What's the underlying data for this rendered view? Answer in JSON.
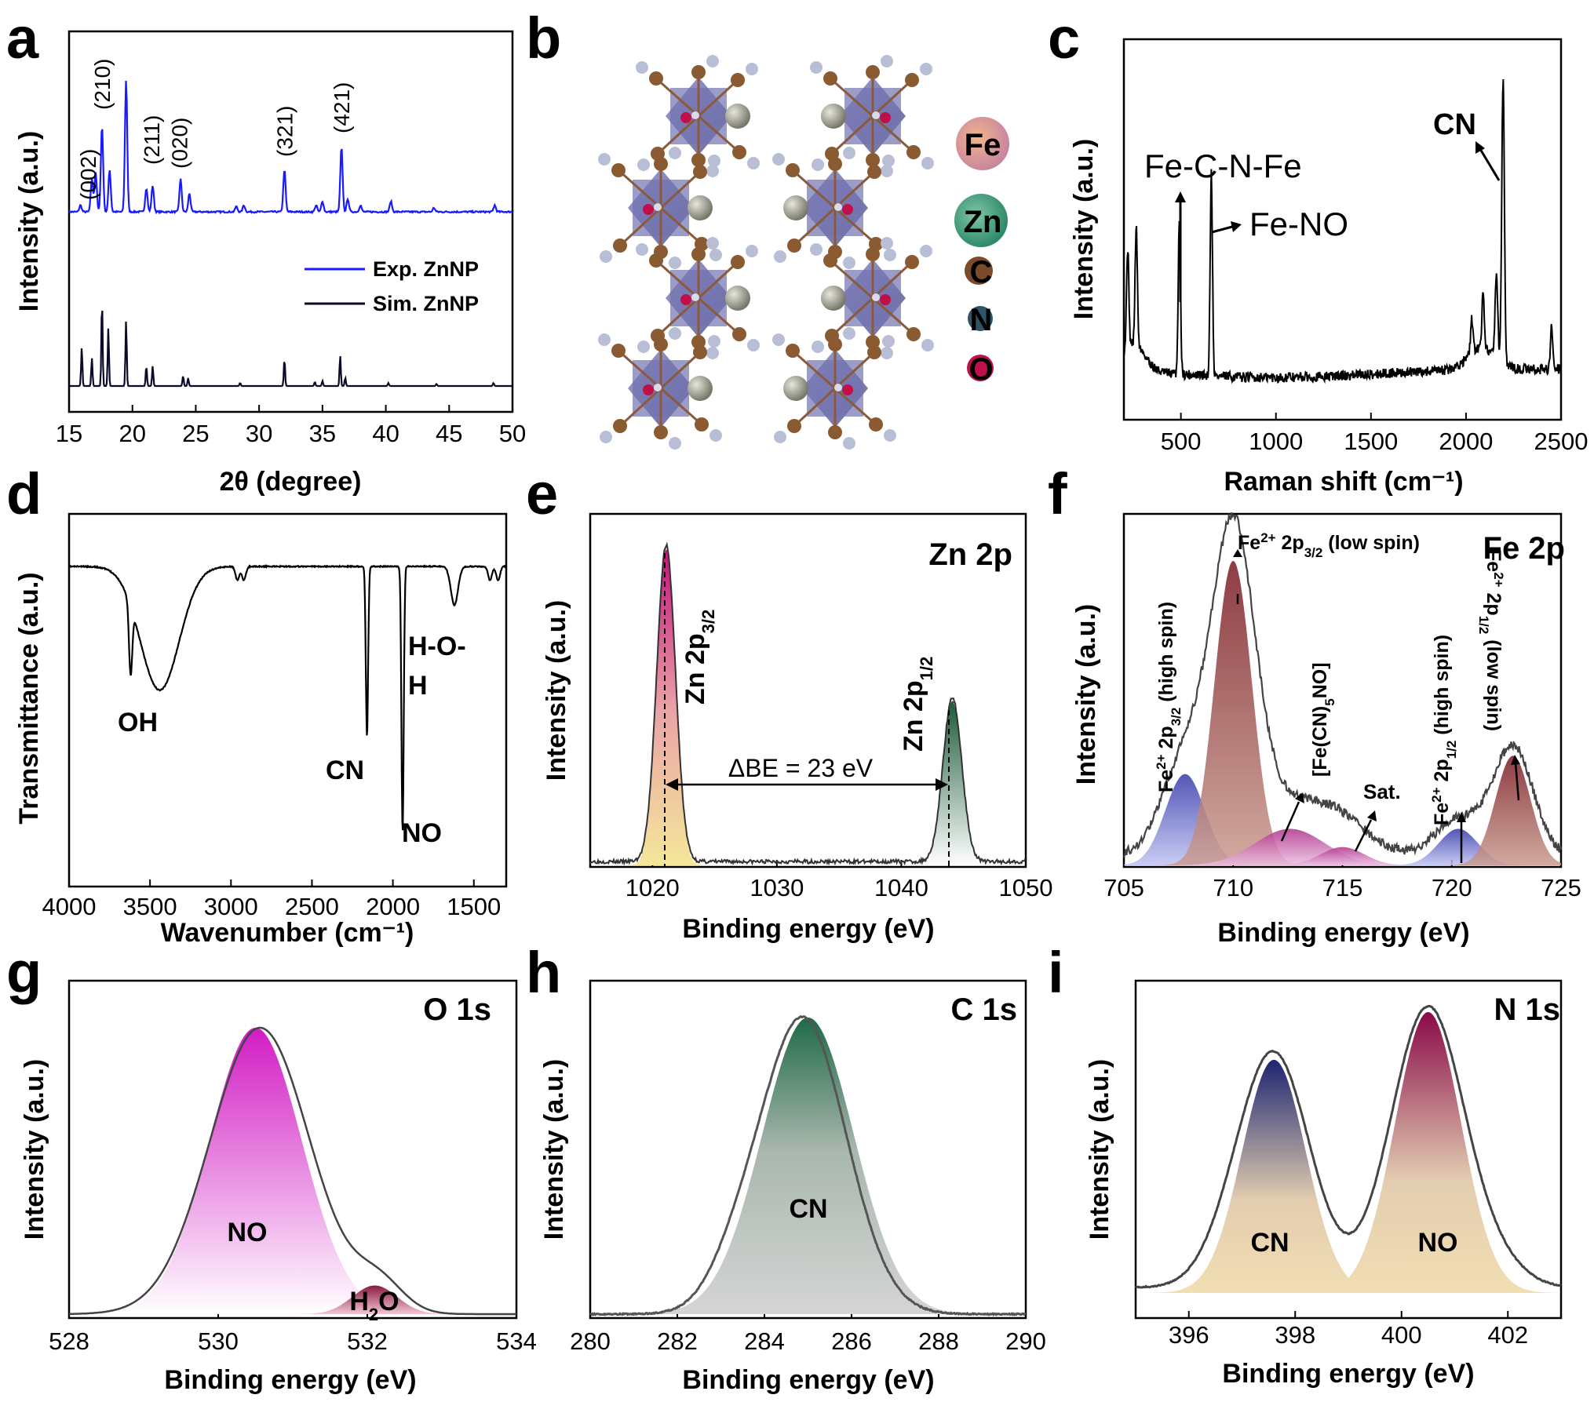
{
  "figure": {
    "panel_letters": [
      "a",
      "b",
      "c",
      "d",
      "e",
      "f",
      "g",
      "h",
      "i"
    ]
  },
  "chart_data": [
    {
      "panel": "a",
      "type": "line",
      "xlabel": "2θ (degree)",
      "ylabel": "Intensity (a.u.)",
      "xlim": [
        15,
        50
      ],
      "xticks": [
        15,
        20,
        25,
        30,
        35,
        40,
        45,
        50
      ],
      "legend": [
        "Exp. ZnNP",
        "Sim. ZnNP"
      ],
      "legend_position": "middle-right",
      "colors": [
        "#1a1aff",
        "#0a0a2a"
      ],
      "peak_labels": [
        {
          "x": 16.5,
          "label": "(002)"
        },
        {
          "x": 17.6,
          "label": "(210)"
        },
        {
          "x": 21.5,
          "label": "(211)"
        },
        {
          "x": 23.7,
          "label": "(020)"
        },
        {
          "x": 32.0,
          "label": "(321)"
        },
        {
          "x": 36.5,
          "label": "(421)"
        }
      ],
      "series": [
        {
          "name": "Exp. ZnNP",
          "peaks": [
            [
              15.9,
              0.05
            ],
            [
              16.8,
              0.25
            ],
            [
              17.1,
              0.3
            ],
            [
              17.6,
              0.65
            ],
            [
              18.2,
              0.32
            ],
            [
              19.5,
              1.0
            ],
            [
              21.1,
              0.18
            ],
            [
              21.6,
              0.2
            ],
            [
              23.8,
              0.25
            ],
            [
              24.5,
              0.14
            ],
            [
              28.2,
              0.04
            ],
            [
              28.8,
              0.05
            ],
            [
              32.0,
              0.32
            ],
            [
              34.5,
              0.05
            ],
            [
              35.0,
              0.08
            ],
            [
              36.5,
              0.49
            ],
            [
              37.0,
              0.1
            ],
            [
              38.0,
              0.05
            ],
            [
              40.4,
              0.08
            ],
            [
              43.8,
              0.03
            ],
            [
              48.6,
              0.05
            ]
          ]
        },
        {
          "name": "Sim. ZnNP",
          "peaks": [
            [
              16.0,
              0.38
            ],
            [
              16.8,
              0.28
            ],
            [
              17.6,
              0.85
            ],
            [
              18.1,
              0.58
            ],
            [
              19.5,
              0.65
            ],
            [
              21.1,
              0.2
            ],
            [
              21.6,
              0.2
            ],
            [
              24.0,
              0.1
            ],
            [
              24.4,
              0.08
            ],
            [
              28.5,
              0.03
            ],
            [
              32.0,
              0.27
            ],
            [
              34.4,
              0.04
            ],
            [
              35.0,
              0.05
            ],
            [
              36.4,
              0.3
            ],
            [
              36.8,
              0.08
            ],
            [
              40.2,
              0.03
            ],
            [
              44.0,
              0.02
            ],
            [
              48.5,
              0.03
            ]
          ]
        }
      ]
    },
    {
      "panel": "b",
      "type": "structure",
      "legend_atoms": [
        "Fe",
        "Zn",
        "C",
        "N",
        "O"
      ],
      "colors": [
        "#d08a6a",
        "#2f8a6a",
        "#7a4a2a",
        "#2e5566",
        "#c0104a"
      ]
    },
    {
      "panel": "c",
      "type": "line",
      "xlabel": "Raman shift (cm⁻¹)",
      "ylabel": "Intensity (a.u.)",
      "xlim": [
        200,
        2500
      ],
      "xticks": [
        500,
        1000,
        1500,
        2000,
        2500
      ],
      "annotations": [
        "Fe-C-N-Fe",
        "Fe-NO",
        "CN"
      ],
      "series": [
        {
          "name": "",
          "peaks": [
            [
              220,
              0.35
            ],
            [
              265,
              0.42
            ],
            [
              492,
              0.55
            ],
            [
              660,
              0.72
            ],
            [
              2030,
              0.12
            ],
            [
              2090,
              0.2
            ],
            [
              2160,
              0.3
            ],
            [
              2195,
              1.0
            ],
            [
              2450,
              0.15
            ]
          ]
        }
      ]
    },
    {
      "panel": "d",
      "type": "line",
      "xlabel": "Wavenumber (cm⁻¹)",
      "ylabel": "Transmittance (a.u.)",
      "xlim": [
        4000,
        1300
      ],
      "xticks": [
        4000,
        3500,
        3000,
        2500,
        2000,
        1500
      ],
      "annotations": [
        "OH",
        "CN",
        "NO",
        "H-O-H"
      ],
      "series": [
        {
          "name": "",
          "dips": [
            [
              3620,
              0.25
            ],
            [
              3440,
              0.45
            ],
            [
              2960,
              0.05
            ],
            [
              2920,
              0.05
            ],
            [
              2160,
              0.62
            ],
            [
              1940,
              0.97
            ],
            [
              1620,
              0.14
            ],
            [
              1400,
              0.05
            ],
            [
              1350,
              0.05
            ]
          ]
        }
      ]
    },
    {
      "panel": "e",
      "type": "area",
      "title": "Zn 2p",
      "xlabel": "Binding energy (eV)",
      "ylabel": "Intensity (a.u.)",
      "xlim": [
        1015,
        1050
      ],
      "xticks": [
        1020,
        1030,
        1040,
        1050
      ],
      "series": [
        {
          "name": "Zn 2p3/2",
          "center": 1021.1,
          "height": 1.0,
          "width": 0.75
        },
        {
          "name": "Zn 2p1/2",
          "center": 1044.1,
          "height": 0.52,
          "width": 0.75
        }
      ],
      "annotation": "ΔBE = 23 eV"
    },
    {
      "panel": "f",
      "type": "area",
      "title": "Fe 2p",
      "xlabel": "Binding energy (eV)",
      "ylabel": "Intensity (a.u.)",
      "xlim": [
        705,
        725
      ],
      "xticks": [
        705,
        710,
        715,
        720,
        725
      ],
      "series": [
        {
          "name": "Fe2+ 2p3/2 (high spin)",
          "center": 707.8,
          "height": 0.3,
          "width": 0.9
        },
        {
          "name": "Fe2+ 2p3/2 (low spin)",
          "center": 710.0,
          "height": 1.0,
          "width": 0.85
        },
        {
          "name": "[Fe(CN)5NO]",
          "center": 712.6,
          "height": 0.12,
          "width": 1.6
        },
        {
          "name": "Sat.",
          "center": 715.0,
          "height": 0.06,
          "width": 1.0
        },
        {
          "name": "Fe2+ 2p1/2 (high spin)",
          "center": 720.3,
          "height": 0.12,
          "width": 0.9
        },
        {
          "name": "Fe2+ 2p1/2 (low spin)",
          "center": 722.8,
          "height": 0.36,
          "width": 0.8
        }
      ]
    },
    {
      "panel": "g",
      "type": "area",
      "title": "O 1s",
      "xlabel": "Binding energy (eV)",
      "ylabel": "Intensity (a.u.)",
      "xlim": [
        528,
        534
      ],
      "xticks": [
        528,
        530,
        532,
        534
      ],
      "series": [
        {
          "name": "NO",
          "center": 530.5,
          "height": 1.0,
          "width": 0.62
        },
        {
          "name": "H2O",
          "center": 532.1,
          "height": 0.1,
          "width": 0.3
        }
      ]
    },
    {
      "panel": "h",
      "type": "area",
      "title": "C 1s",
      "xlabel": "Binding energy (eV)",
      "ylabel": "Intensity (a.u.)",
      "xlim": [
        280,
        290
      ],
      "xticks": [
        280,
        282,
        284,
        286,
        288,
        290
      ],
      "series": [
        {
          "name": "CN",
          "center": 285.0,
          "height": 1.0,
          "width": 1.05
        }
      ]
    },
    {
      "panel": "i",
      "type": "area",
      "title": "N 1s",
      "xlabel": "Binding energy (eV)",
      "ylabel": "Intensity (a.u.)",
      "xlim": [
        395,
        403
      ],
      "xticks": [
        396,
        398,
        400,
        402
      ],
      "series": [
        {
          "name": "CN",
          "center": 397.6,
          "height": 0.83,
          "width": 0.6
        },
        {
          "name": "NO",
          "center": 400.5,
          "height": 1.0,
          "width": 0.62
        }
      ]
    }
  ]
}
